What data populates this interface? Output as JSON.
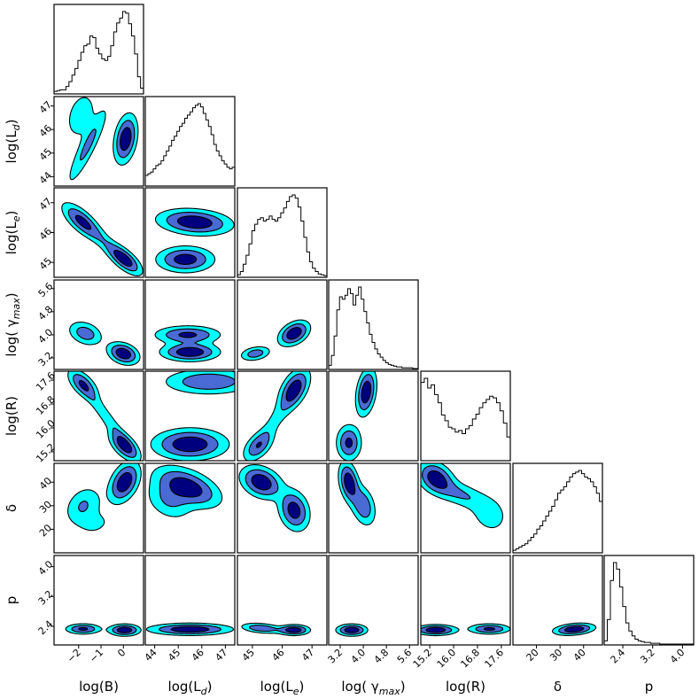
{
  "chart_data": {
    "type": "corner",
    "params": [
      {
        "label": "log(B)",
        "sub": "",
        "ticks": [
          "−2",
          "−1",
          "0"
        ]
      },
      {
        "label": "log(L",
        "sub": "d",
        "ticks": [
          "44",
          "45",
          "46",
          "47"
        ]
      },
      {
        "label": "log(L",
        "sub": "e",
        "ticks": [
          "45",
          "46",
          "47"
        ]
      },
      {
        "label": "log( γ",
        "sub": "max",
        "ticks": [
          "3.2",
          "4.0",
          "4.8",
          "5.6"
        ]
      },
      {
        "label": "log(R)",
        "sub": "",
        "ticks": [
          "15.2",
          "16.0",
          "16.8",
          "17.6"
        ]
      },
      {
        "label": "δ",
        "sub": "",
        "ticks": [
          "20",
          "30",
          "40"
        ]
      },
      {
        "label": "p",
        "sub": "",
        "ticks": [
          "2.4",
          "3.2",
          "4.0"
        ]
      }
    ],
    "ranges": [
      [
        -3.1,
        0.9
      ],
      [
        43.6,
        47.4
      ],
      [
        44.5,
        47.5
      ],
      [
        2.8,
        5.9
      ],
      [
        14.9,
        17.9
      ],
      [
        10,
        48
      ],
      [
        1.9,
        4.3
      ]
    ],
    "tick_values": [
      [
        -2,
        -1,
        0
      ],
      [
        44,
        45,
        46,
        47
      ],
      [
        45,
        46,
        47
      ],
      [
        3.2,
        4.0,
        4.8,
        5.6
      ],
      [
        15.2,
        16.0,
        16.8,
        17.6
      ],
      [
        20,
        30,
        40
      ],
      [
        2.4,
        3.2,
        4.0
      ]
    ],
    "contour_levels": [
      "outer",
      "middle",
      "inner"
    ],
    "colors": {
      "outer": "#00ffff",
      "middle": "#4b6cd4",
      "inner": "#000080",
      "edge": "#000000",
      "hist": "#000000"
    },
    "histograms": [
      [
        2,
        3,
        4,
        4,
        8,
        14,
        22,
        30,
        40,
        50,
        58,
        60,
        70,
        68,
        55,
        48,
        42,
        40,
        45,
        58,
        75,
        86,
        92,
        100,
        98,
        85,
        70,
        48,
        20,
        6
      ],
      [
        12,
        14,
        16,
        20,
        24,
        26,
        30,
        36,
        42,
        48,
        55,
        60,
        66,
        72,
        76,
        82,
        86,
        90,
        95,
        98,
        100,
        96,
        88,
        80,
        72,
        62,
        50,
        42,
        36,
        30,
        26,
        22,
        20,
        22
      ],
      [
        2,
        6,
        15,
        26,
        40,
        56,
        64,
        70,
        72,
        68,
        70,
        74,
        70,
        68,
        72,
        78,
        84,
        92,
        98,
        100,
        96,
        85,
        68,
        48,
        30,
        18,
        10,
        6,
        3,
        2,
        1
      ],
      [
        4,
        16,
        40,
        72,
        88,
        85,
        90,
        98,
        92,
        78,
        90,
        100,
        85,
        70,
        56,
        42,
        32,
        24,
        18,
        14,
        10,
        7,
        5,
        4,
        3,
        2,
        2,
        1,
        1,
        1,
        1,
        0,
        0
      ],
      [
        95,
        100,
        88,
        92,
        80,
        70,
        55,
        48,
        40,
        38,
        34,
        36,
        32,
        38,
        42,
        50,
        56,
        64,
        70,
        74,
        78,
        76,
        70,
        60,
        45,
        28
      ],
      [
        2,
        4,
        6,
        8,
        10,
        14,
        18,
        22,
        28,
        32,
        38,
        44,
        50,
        56,
        64,
        72,
        76,
        80,
        86,
        92,
        96,
        98,
        100,
        96,
        92,
        90,
        86,
        80,
        72,
        62
      ],
      [
        4,
        30,
        78,
        100,
        92,
        70,
        46,
        26,
        16,
        10,
        6,
        4,
        3,
        2,
        2,
        1,
        1,
        1,
        0,
        0,
        0,
        0,
        0,
        0,
        0,
        0,
        0,
        0,
        0
      ]
    ],
    "pairs": [
      {
        "x": 0,
        "y": 1,
        "peaks": [
          {
            "cx": -1.6,
            "cy": 45.3,
            "sx": 0.55,
            "sy": 1.0,
            "rho": 0.9,
            "w": 0.5
          },
          {
            "cx": -1.9,
            "cy": 46.6,
            "sx": 0.4,
            "sy": 0.6,
            "rho": 0.3,
            "w": 0.4
          },
          {
            "cx": 0.1,
            "cy": 45.6,
            "sx": 0.3,
            "sy": 0.6,
            "rho": 0.3,
            "w": 1.0
          }
        ]
      },
      {
        "x": 0,
        "y": 2,
        "peaks": [
          {
            "cx": -1.9,
            "cy": 46.4,
            "sx": 0.5,
            "sy": 0.35,
            "rho": -0.7,
            "w": 0.8
          },
          {
            "cx": 0.05,
            "cy": 45.1,
            "sx": 0.45,
            "sy": 0.3,
            "rho": -0.7,
            "w": 1.0
          },
          {
            "cx": -1.0,
            "cy": 45.8,
            "sx": 0.7,
            "sy": 0.5,
            "rho": -0.9,
            "w": 0.35
          }
        ]
      },
      {
        "x": 0,
        "y": 3,
        "peaks": [
          {
            "cx": -1.7,
            "cy": 4.05,
            "sx": 0.45,
            "sy": 0.25,
            "rho": -0.3,
            "w": 0.6
          },
          {
            "cx": 0.0,
            "cy": 3.35,
            "sx": 0.4,
            "sy": 0.22,
            "rho": -0.3,
            "w": 1.0
          }
        ]
      },
      {
        "x": 0,
        "y": 4,
        "peaks": [
          {
            "cx": -1.8,
            "cy": 17.45,
            "sx": 0.4,
            "sy": 0.3,
            "rho": -0.6,
            "w": 0.8
          },
          {
            "cx": 0.05,
            "cy": 15.4,
            "sx": 0.4,
            "sy": 0.3,
            "rho": -0.6,
            "w": 1.0
          },
          {
            "cx": -0.8,
            "cy": 16.4,
            "sx": 0.7,
            "sy": 0.7,
            "rho": -0.95,
            "w": 0.4
          }
        ]
      },
      {
        "x": 0,
        "y": 5,
        "peaks": [
          {
            "cx": 0.05,
            "cy": 40,
            "sx": 0.4,
            "sy": 5,
            "rho": 0.4,
            "w": 1.0
          },
          {
            "cx": -1.8,
            "cy": 30,
            "sx": 0.5,
            "sy": 5,
            "rho": 0.3,
            "w": 0.45
          },
          {
            "cx": -1.2,
            "cy": 22,
            "sx": 0.6,
            "sy": 4,
            "rho": 0.3,
            "w": 0.2
          }
        ]
      },
      {
        "x": 0,
        "y": 6,
        "peaks": [
          {
            "cx": -1.8,
            "cy": 2.33,
            "sx": 0.45,
            "sy": 0.08,
            "rho": 0.0,
            "w": 0.8
          },
          {
            "cx": 0.05,
            "cy": 2.3,
            "sx": 0.4,
            "sy": 0.09,
            "rho": 0.0,
            "w": 1.0
          }
        ]
      },
      {
        "x": 1,
        "y": 2,
        "peaks": [
          {
            "cx": 45.7,
            "cy": 46.35,
            "sx": 0.9,
            "sy": 0.25,
            "rho": -0.2,
            "w": 1.0
          },
          {
            "cx": 45.3,
            "cy": 45.1,
            "sx": 0.7,
            "sy": 0.25,
            "rho": 0.0,
            "w": 0.9
          }
        ]
      },
      {
        "x": 1,
        "y": 3,
        "peaks": [
          {
            "cx": 45.4,
            "cy": 4.0,
            "sx": 0.8,
            "sy": 0.18,
            "rho": 0.0,
            "w": 0.8
          },
          {
            "cx": 45.5,
            "cy": 3.4,
            "sx": 0.7,
            "sy": 0.18,
            "rho": 0.0,
            "w": 1.0
          }
        ]
      },
      {
        "x": 1,
        "y": 4,
        "peaks": [
          {
            "cx": 45.5,
            "cy": 15.45,
            "sx": 0.9,
            "sy": 0.3,
            "rho": 0.0,
            "w": 1.0
          },
          {
            "cx": 46.3,
            "cy": 17.55,
            "sx": 1.1,
            "sy": 0.25,
            "rho": 0.0,
            "w": 0.7
          }
        ]
      },
      {
        "x": 1,
        "y": 5,
        "peaks": [
          {
            "cx": 45.4,
            "cy": 38,
            "sx": 0.8,
            "sy": 5,
            "rho": -0.5,
            "w": 1.0
          },
          {
            "cx": 44.6,
            "cy": 32,
            "sx": 0.6,
            "sy": 5,
            "rho": -0.3,
            "w": 0.45
          }
        ]
      },
      {
        "x": 1,
        "y": 6,
        "peaks": [
          {
            "cx": 45.5,
            "cy": 2.32,
            "sx": 1.0,
            "sy": 0.09,
            "rho": 0.0,
            "w": 1.0
          }
        ]
      },
      {
        "x": 2,
        "y": 3,
        "peaks": [
          {
            "cx": 46.4,
            "cy": 4.05,
            "sx": 0.3,
            "sy": 0.25,
            "rho": 0.4,
            "w": 1.0
          },
          {
            "cx": 45.1,
            "cy": 3.35,
            "sx": 0.3,
            "sy": 0.15,
            "rho": 0.3,
            "w": 0.6
          }
        ]
      },
      {
        "x": 2,
        "y": 4,
        "peaks": [
          {
            "cx": 46.4,
            "cy": 17.3,
            "sx": 0.3,
            "sy": 0.4,
            "rho": 0.5,
            "w": 1.0
          },
          {
            "cx": 45.2,
            "cy": 15.4,
            "sx": 0.3,
            "sy": 0.3,
            "rho": 0.5,
            "w": 0.7
          },
          {
            "cx": 45.8,
            "cy": 16.3,
            "sx": 0.5,
            "sy": 0.7,
            "rho": 0.9,
            "w": 0.3
          }
        ]
      },
      {
        "x": 2,
        "y": 5,
        "peaks": [
          {
            "cx": 45.3,
            "cy": 40,
            "sx": 0.4,
            "sy": 4,
            "rho": -0.3,
            "w": 1.0
          },
          {
            "cx": 46.4,
            "cy": 28,
            "sx": 0.3,
            "sy": 5,
            "rho": -0.2,
            "w": 0.9
          }
        ]
      },
      {
        "x": 2,
        "y": 6,
        "peaks": [
          {
            "cx": 45.3,
            "cy": 2.35,
            "sx": 0.4,
            "sy": 0.08,
            "rho": -0.3,
            "w": 0.7
          },
          {
            "cx": 46.4,
            "cy": 2.3,
            "sx": 0.3,
            "sy": 0.08,
            "rho": 0.0,
            "w": 1.0
          }
        ]
      },
      {
        "x": 3,
        "y": 4,
        "peaks": [
          {
            "cx": 4.1,
            "cy": 17.2,
            "sx": 0.2,
            "sy": 0.45,
            "rho": 0.3,
            "w": 1.0
          },
          {
            "cx": 3.5,
            "cy": 15.5,
            "sx": 0.25,
            "sy": 0.35,
            "rho": 0.0,
            "w": 0.8
          }
        ]
      },
      {
        "x": 3,
        "y": 5,
        "peaks": [
          {
            "cx": 3.5,
            "cy": 40,
            "sx": 0.2,
            "sy": 5,
            "rho": -0.3,
            "w": 1.0
          },
          {
            "cx": 4.0,
            "cy": 30,
            "sx": 0.25,
            "sy": 5,
            "rho": -0.3,
            "w": 0.7
          }
        ]
      },
      {
        "x": 3,
        "y": 6,
        "peaks": [
          {
            "cx": 3.6,
            "cy": 2.3,
            "sx": 0.3,
            "sy": 0.09,
            "rho": 0.0,
            "w": 1.0
          }
        ]
      },
      {
        "x": 4,
        "y": 5,
        "peaks": [
          {
            "cx": 15.4,
            "cy": 42,
            "sx": 0.35,
            "sy": 4,
            "rho": -0.3,
            "w": 1.0
          },
          {
            "cx": 16.2,
            "cy": 35,
            "sx": 0.6,
            "sy": 4,
            "rho": -0.6,
            "w": 0.5
          },
          {
            "cx": 17.2,
            "cy": 26,
            "sx": 0.4,
            "sy": 5,
            "rho": -0.2,
            "w": 0.35
          }
        ]
      },
      {
        "x": 4,
        "y": 6,
        "peaks": [
          {
            "cx": 15.4,
            "cy": 2.3,
            "sx": 0.4,
            "sy": 0.08,
            "rho": 0.0,
            "w": 1.0
          },
          {
            "cx": 17.2,
            "cy": 2.33,
            "sx": 0.4,
            "sy": 0.08,
            "rho": 0.0,
            "w": 0.8
          }
        ]
      },
      {
        "x": 5,
        "y": 6,
        "peaks": [
          {
            "cx": 36,
            "cy": 2.32,
            "sx": 5,
            "sy": 0.09,
            "rho": 0.3,
            "w": 1.0
          }
        ]
      }
    ]
  }
}
